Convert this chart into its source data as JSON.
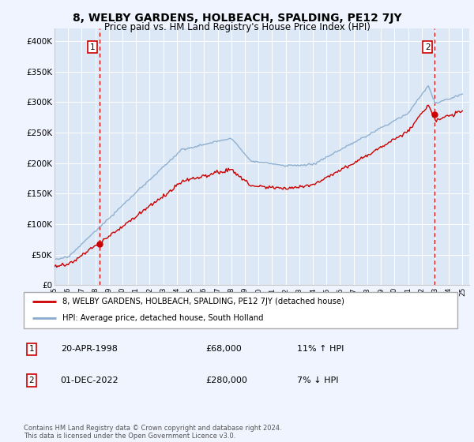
{
  "title": "8, WELBY GARDENS, HOLBEACH, SPALDING, PE12 7JY",
  "subtitle": "Price paid vs. HM Land Registry's House Price Index (HPI)",
  "background_color": "#f0f4ff",
  "plot_bg_color": "#dce8f5",
  "ylim": [
    0,
    420000
  ],
  "yticks": [
    0,
    50000,
    100000,
    150000,
    200000,
    250000,
    300000,
    350000,
    400000
  ],
  "ytick_labels": [
    "£0",
    "£50K",
    "£100K",
    "£150K",
    "£200K",
    "£250K",
    "£300K",
    "£350K",
    "£400K"
  ],
  "sale1_date_num": 1998.3,
  "sale1_price": 68000,
  "sale2_date_num": 2022.92,
  "sale2_price": 280000,
  "legend_line1": "8, WELBY GARDENS, HOLBEACH, SPALDING, PE12 7JY (detached house)",
  "legend_line2": "HPI: Average price, detached house, South Holland",
  "footer": "Contains HM Land Registry data © Crown copyright and database right 2024.\nThis data is licensed under the Open Government Licence v3.0.",
  "line_color_red": "#cc0000",
  "line_color_blue": "#88aacc",
  "vline_color": "#cc0000",
  "marker_color": "#cc0000"
}
